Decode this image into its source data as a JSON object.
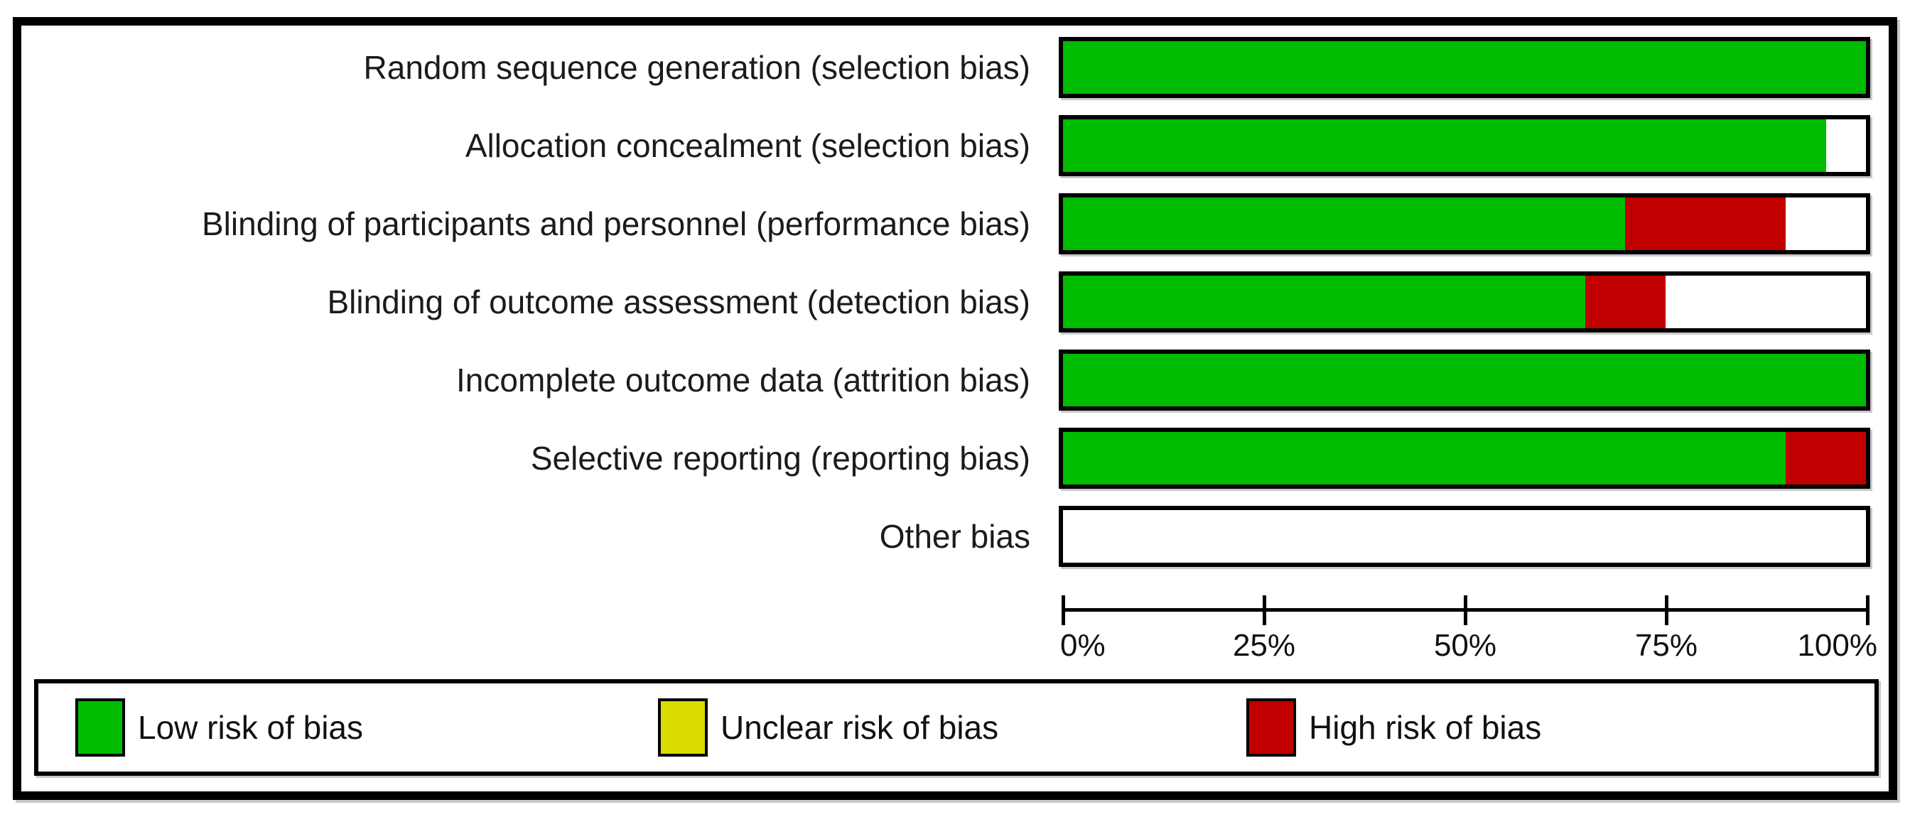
{
  "figure": {
    "kind": "risk-of-bias-graph"
  },
  "colors": {
    "low": "#00BC00",
    "unclear": "#DBDB00",
    "high": "#C00000",
    "blank": "#FFFFFF",
    "frame": "#000000",
    "text": "#1B1B1B"
  },
  "axis": {
    "ticks": [
      {
        "label": "0%",
        "pct": 0
      },
      {
        "label": "25%",
        "pct": 25
      },
      {
        "label": "50%",
        "pct": 50
      },
      {
        "label": "75%",
        "pct": 75
      },
      {
        "label": "100%",
        "pct": 100
      }
    ]
  },
  "legend": {
    "items": [
      {
        "key": "low",
        "label": "Low risk of bias",
        "color": "#00BC00"
      },
      {
        "key": "unclear",
        "label": "Unclear risk of bias",
        "color": "#DBDB00"
      },
      {
        "key": "high",
        "label": "High risk of bias",
        "color": "#C00000"
      }
    ]
  },
  "chart_data": {
    "type": "bar",
    "subtype": "horizontal-stacked",
    "unit": "percent",
    "xlim": [
      0,
      100
    ],
    "x_tick_labels": [
      "0%",
      "25%",
      "50%",
      "75%",
      "100%"
    ],
    "legend_position": "bottom",
    "grid": false,
    "categories": [
      "Random sequence generation (selection bias)",
      "Allocation concealment (selection bias)",
      "Blinding of participants and personnel (performance bias)",
      "Blinding of outcome assessment (detection bias)",
      "Incomplete outcome data (attrition bias)",
      "Selective reporting (reporting bias)",
      "Other bias"
    ],
    "series": [
      {
        "key": "low",
        "name": "Low risk of bias",
        "color": "#00BC00",
        "values": [
          100,
          95,
          70,
          65,
          100,
          90,
          0
        ]
      },
      {
        "key": "unclear",
        "name": "Unclear risk of bias",
        "color": "#DBDB00",
        "values": [
          0,
          0,
          0,
          0,
          0,
          0,
          0
        ]
      },
      {
        "key": "high",
        "name": "High risk of bias",
        "color": "#C00000",
        "values": [
          0,
          0,
          20,
          10,
          0,
          10,
          0
        ]
      },
      {
        "key": "blank",
        "name": "(blank)",
        "color": "#FFFFFF",
        "values": [
          0,
          5,
          10,
          25,
          0,
          0,
          100
        ]
      }
    ]
  }
}
